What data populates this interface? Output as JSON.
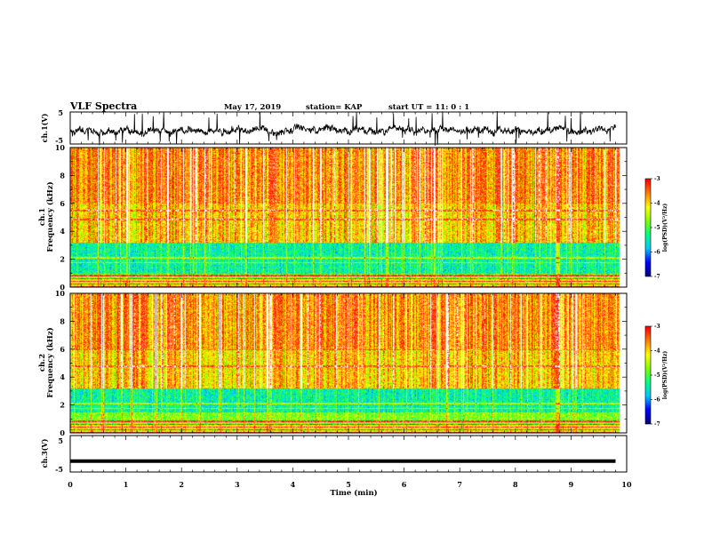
{
  "header": {
    "title": "VLF Spectra",
    "date": "May 17, 2019",
    "station": "station= KAP",
    "start_ut": "start  UT =   11: 0  : 1"
  },
  "chart_data": [
    {
      "type": "line",
      "panel": "ch1-waveform",
      "ylabel": "ch.1(V)",
      "ylim": [
        -5,
        5
      ],
      "y_ticks": [
        "5",
        "-5"
      ],
      "xlim": [
        0,
        10
      ],
      "note_values": "dense noisy waveform, roughly between -2 and +1 V"
    },
    {
      "type": "heatmap",
      "panel": "ch1-spectrogram",
      "ylabel_channel": "ch.1",
      "ylabel": "Frequency  (kHz)",
      "ylim": [
        0,
        10
      ],
      "y_ticks": [
        "0",
        "2",
        "4",
        "6",
        "8",
        "10"
      ],
      "xlim": [
        0,
        10
      ],
      "colorbar": {
        "label": "log(PSD)(V²/Hz)",
        "range": [
          -7,
          -3
        ],
        "ticks": [
          "-3",
          "-4",
          "-5",
          "-6",
          "-7"
        ]
      },
      "features": {
        "low_band_khz": [
          1.0,
          3.2
        ],
        "line_khz": [
          4.9,
          5.5
        ],
        "burst_min": 8.75
      }
    },
    {
      "type": "heatmap",
      "panel": "ch2-spectrogram",
      "ylabel_channel": "ch.2",
      "ylabel": "Frequency  (kHz)",
      "ylim": [
        0,
        10
      ],
      "y_ticks": [
        "0",
        "2",
        "4",
        "6",
        "8",
        "10"
      ],
      "xlim": [
        0,
        10
      ],
      "colorbar": {
        "label": "log(PSD)(V²/Hz)",
        "range": [
          -7,
          -3
        ],
        "ticks": [
          "-3",
          "-4",
          "-5",
          "-6",
          "-7"
        ]
      },
      "features": {
        "low_band_khz": [
          1.5,
          3.2
        ],
        "line_khz": [
          4.8,
          6.0
        ],
        "burst_min": 8.75
      }
    },
    {
      "type": "line",
      "panel": "ch3-waveform",
      "ylabel": "ch.3(V)",
      "ylim": [
        -5,
        5
      ],
      "y_ticks": [
        "5",
        "-5"
      ],
      "x": [
        0,
        9.8
      ],
      "y": [
        -2,
        -2
      ],
      "xlim": [
        0,
        10
      ],
      "xlabel": "Time  (min)",
      "x_ticks": [
        "0",
        "1",
        "2",
        "3",
        "4",
        "5",
        "6",
        "7",
        "8",
        "9",
        "10"
      ]
    }
  ],
  "colors": {
    "scale": [
      "#000080",
      "#0000ff",
      "#00c8ff",
      "#00ff80",
      "#80ff00",
      "#ffff00",
      "#ff8000",
      "#ff0000",
      "#ffffff"
    ]
  }
}
